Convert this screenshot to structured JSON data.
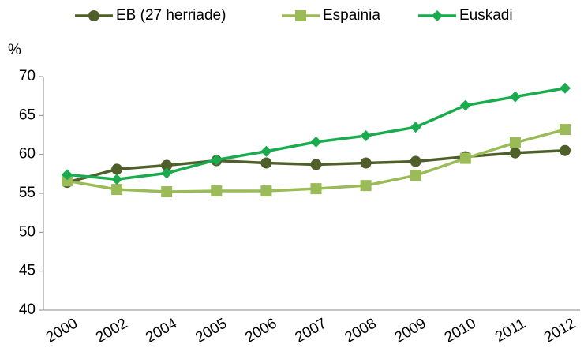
{
  "chart_data": {
    "type": "line",
    "y_label": "%",
    "categories": [
      "2000",
      "2002",
      "2004",
      "2005",
      "2006",
      "2007",
      "2008",
      "2009",
      "2010",
      "2011",
      "2012"
    ],
    "series": [
      {
        "name": "EB (27 herriade)",
        "color": "#4f5f2a",
        "marker": "circle",
        "values": [
          56.4,
          58.1,
          58.6,
          59.2,
          58.9,
          58.7,
          58.9,
          59.1,
          59.7,
          60.2,
          60.5
        ]
      },
      {
        "name": "Espainia",
        "color": "#9bbb59",
        "marker": "square",
        "values": [
          56.6,
          55.5,
          55.2,
          55.3,
          55.3,
          55.6,
          56.0,
          57.3,
          59.5,
          61.5,
          63.2
        ]
      },
      {
        "name": "Euskadi",
        "color": "#1aab4e",
        "marker": "diamond",
        "values": [
          57.4,
          56.8,
          57.6,
          59.3,
          60.4,
          61.6,
          62.4,
          63.5,
          66.3,
          67.4,
          68.5
        ]
      }
    ],
    "ylim": [
      40,
      70
    ],
    "yticks": [
      40,
      45,
      50,
      55,
      60,
      65,
      70
    ],
    "grid": false,
    "legend": "top"
  }
}
